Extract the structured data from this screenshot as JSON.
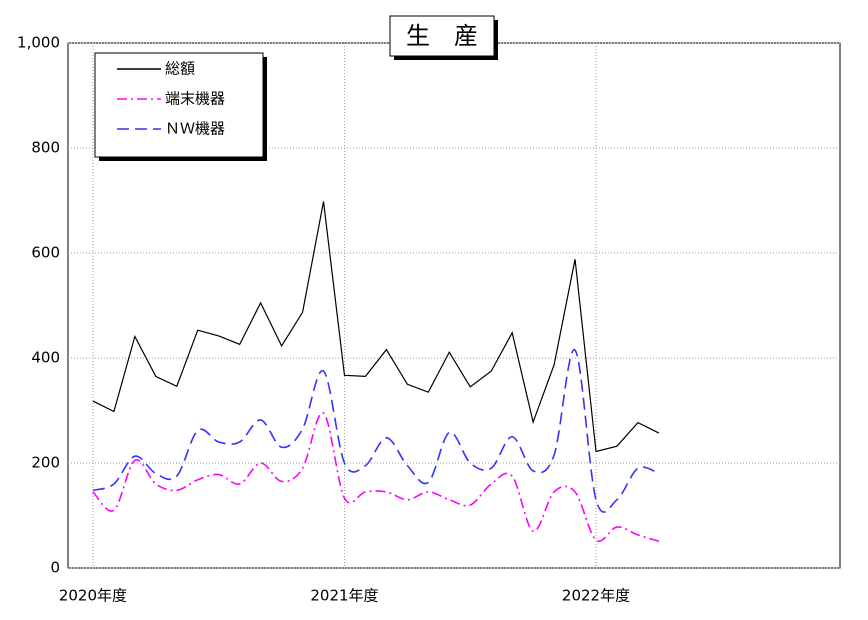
{
  "chart_data": {
    "type": "line",
    "title": "生　産",
    "x": [
      0,
      1,
      2,
      3,
      4,
      5,
      6,
      7,
      8,
      9,
      10,
      11,
      12,
      13,
      14,
      15,
      16,
      17,
      18,
      19,
      20,
      21,
      22,
      23,
      24,
      25,
      26,
      27
    ],
    "xlim": [
      -1.19,
      35.64
    ],
    "xticks": [
      {
        "value": 0,
        "label": "2020年度"
      },
      {
        "value": 12,
        "label": "2021年度"
      },
      {
        "value": 24,
        "label": "2022年度"
      }
    ],
    "ylim": [
      0,
      1000
    ],
    "yticks": [
      0,
      200,
      400,
      600,
      800,
      {
        "value": 1000,
        "label": "1,000"
      }
    ],
    "grid": true,
    "legend": "upper left",
    "series": [
      {
        "name": "総額",
        "color": "#000000",
        "dash": "solid",
        "smooth": false,
        "values": [
          318,
          298,
          441,
          365,
          346,
          453,
          442,
          426,
          505,
          423,
          487,
          698,
          367,
          365,
          416,
          350,
          335,
          411,
          345,
          375,
          448,
          278,
          387,
          588,
          222,
          232,
          277,
          257
        ]
      },
      {
        "name": "端末機器",
        "color": "#ff00ff",
        "dash": "dashdot",
        "smooth": true,
        "values": [
          145,
          110,
          205,
          160,
          148,
          168,
          178,
          160,
          200,
          165,
          190,
          295,
          133,
          145,
          145,
          130,
          145,
          130,
          120,
          160,
          175,
          70,
          145,
          145,
          53,
          78,
          63,
          51
        ]
      },
      {
        "name": "ＮＷ機器",
        "color": "#3333ff",
        "dash": "dashed",
        "smooth": true,
        "values": [
          148,
          160,
          213,
          180,
          175,
          262,
          240,
          240,
          282,
          230,
          265,
          375,
          200,
          195,
          248,
          195,
          163,
          258,
          200,
          190,
          250,
          185,
          215,
          415,
          130,
          130,
          190,
          180
        ]
      }
    ]
  }
}
